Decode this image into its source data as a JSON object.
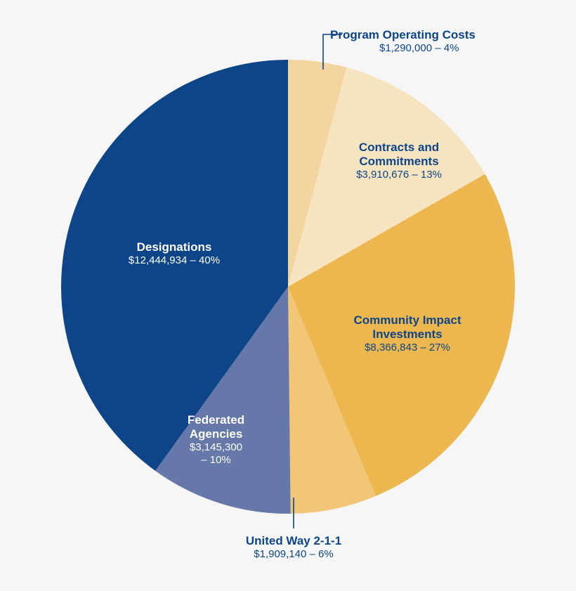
{
  "chart_data": {
    "type": "pie",
    "slices": [
      {
        "name": "Program Operating Costs",
        "amount": "$1,290,000",
        "pct_label": "– 4%",
        "amount_value": 1290000,
        "color": "#f3d59f",
        "text_style": "light"
      },
      {
        "name": "Contracts and Commitments",
        "amount": "$3,910,676",
        "pct_label": "– 13%",
        "amount_value": 3910676,
        "color": "#f6e4c1",
        "text_style": "light"
      },
      {
        "name": "Community Impact Investments",
        "amount": "$8,366,843",
        "pct_label": "– 27%",
        "amount_value": 8366843,
        "color": "#ecb74e",
        "text_style": "light"
      },
      {
        "name": "United Way 2-1-1",
        "amount": "$1,909,140",
        "pct_label": "– 6%",
        "amount_value": 1909140,
        "color": "#f1c677",
        "text_style": "light"
      },
      {
        "name": "Federated Agencies",
        "amount": "$3,145,300",
        "pct_label": "– 10%",
        "amount_value": 3145300,
        "color": "#6677a9",
        "text_style": "dark"
      },
      {
        "name": "Designations",
        "amount": "$12,444,934",
        "pct_label": "– 40%",
        "amount_value": 12444934,
        "color": "#0d4588",
        "text_style": "dark"
      }
    ],
    "start_angle": "12 o'clock",
    "direction": "clockwise",
    "legend": "none"
  }
}
